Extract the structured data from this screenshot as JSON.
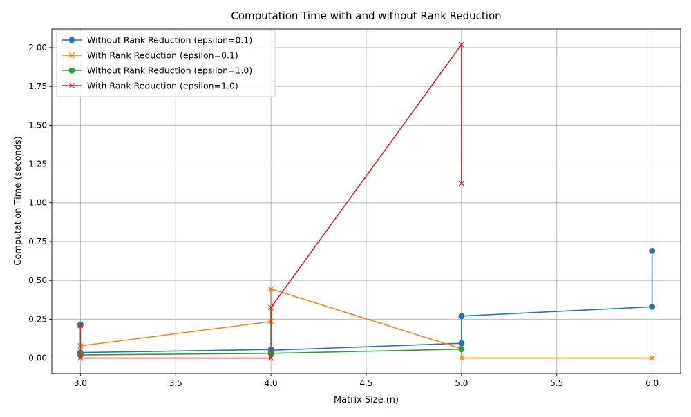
{
  "chart_data": {
    "type": "line",
    "title": "Computation Time with and without Rank Reduction",
    "xlabel": "Matrix Size (n)",
    "ylabel": "Computation Time (seconds)",
    "xlim": [
      2.85,
      6.15
    ],
    "ylim": [
      -0.1,
      2.12
    ],
    "xticks": [
      "3.0",
      "3.5",
      "4.0",
      "4.5",
      "5.0",
      "5.5",
      "6.0"
    ],
    "yticks": [
      "0.00",
      "0.25",
      "0.50",
      "0.75",
      "1.00",
      "1.25",
      "1.50",
      "1.75",
      "2.00"
    ],
    "grid": true,
    "legend_position": "top-left",
    "series": [
      {
        "name": "Without Rank Reduction (epsilon=0.1)",
        "color": "#1f77b4",
        "marker": "circle",
        "x": [
          3,
          3,
          3,
          4,
          4,
          5,
          5,
          6,
          6
        ],
        "y": [
          0.215,
          0.025,
          0.035,
          0.055,
          0.05,
          0.095,
          0.27,
          0.33,
          0.69
        ]
      },
      {
        "name": "With Rank Reduction (epsilon=0.1)",
        "color": "#ff7f0e",
        "marker": "x",
        "x": [
          3,
          3,
          4,
          4,
          5,
          5,
          6
        ],
        "y": [
          0.0,
          0.078,
          0.235,
          0.445,
          0.06,
          0.0,
          0.0
        ]
      },
      {
        "name": "Without Rank Reduction (epsilon=1.0)",
        "color": "#2ca02c",
        "marker": "circle",
        "x": [
          3,
          4,
          5
        ],
        "y": [
          0.02,
          0.03,
          0.057
        ]
      },
      {
        "name": "With Rank Reduction (epsilon=1.0)",
        "color": "#d62728",
        "marker": "x",
        "x": [
          3,
          3,
          4,
          4,
          5,
          5
        ],
        "y": [
          0.21,
          0.0,
          0.0,
          0.325,
          2.02,
          1.125
        ]
      }
    ]
  }
}
